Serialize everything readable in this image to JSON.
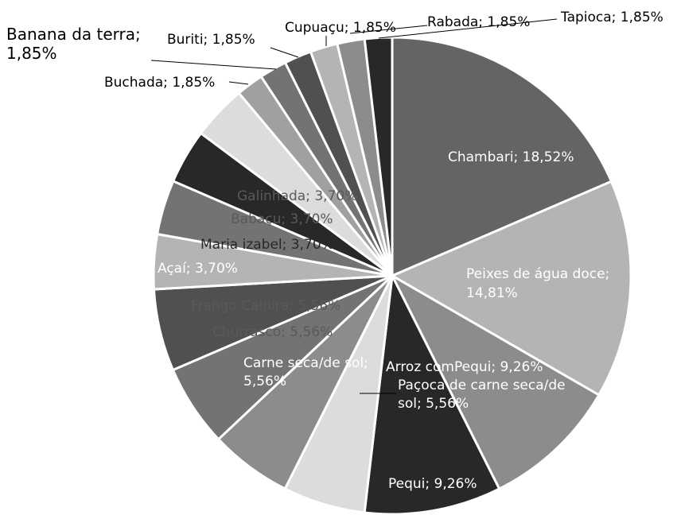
{
  "chart_data": {
    "type": "pie",
    "title": "",
    "slices": [
      {
        "label": "Chambari; 18,52%",
        "value": 18.52,
        "color": "#646464",
        "label_color": "#ffffff"
      },
      {
        "label": "Peixes de água doce; 14,81%",
        "value": 14.81,
        "color": "#b4b4b4",
        "label_color": "#ffffff"
      },
      {
        "label": "Arroz comPequi; 9,26%",
        "value": 9.26,
        "color": "#8c8c8c",
        "label_color": "#ffffff"
      },
      {
        "label": "Pequi; 9,26%",
        "value": 9.26,
        "color": "#282828",
        "label_color": "#ffffff"
      },
      {
        "label": "Paçoca de carne seca/de sol; 5,56%",
        "value": 5.56,
        "color": "#dcdcdc",
        "label_color": "#ffffff"
      },
      {
        "label": "Carne  seca/de sol; 5,56%",
        "value": 5.56,
        "color": "#8c8c8c",
        "label_color": "#ffffff"
      },
      {
        "label": "Churrasco; 5,56%",
        "value": 5.56,
        "color": "#737373",
        "label_color": "#5a5a5a"
      },
      {
        "label": "Frango Caipira; 5,56%",
        "value": 5.56,
        "color": "#505050",
        "label_color": "#5a5a5a"
      },
      {
        "label": "Açaí; 3,70%",
        "value": 3.7,
        "color": "#b4b4b4",
        "label_color": "#ffffff"
      },
      {
        "label": "Maria izabel; 3,70%",
        "value": 3.7,
        "color": "#737373",
        "label_color": "#282828"
      },
      {
        "label": "Babaçu; 3,70%",
        "value": 3.7,
        "color": "#282828",
        "label_color": "#5a5a5a"
      },
      {
        "label": "Galinhada; 3,70%",
        "value": 3.7,
        "color": "#dcdcdc",
        "label_color": "#5a5a5a"
      },
      {
        "label": "Buchada; 1,85%",
        "value": 1.85,
        "color": "#a0a0a0",
        "label_color": "#000000"
      },
      {
        "label": "Banana da terra; 1,85%",
        "value": 1.85,
        "color": "#737373",
        "label_color": "#000000"
      },
      {
        "label": "Buriti; 1,85%",
        "value": 1.85,
        "color": "#505050",
        "label_color": "#000000"
      },
      {
        "label": "Cupuaçu; 1,85%",
        "value": 1.85,
        "color": "#b4b4b4",
        "label_color": "#000000"
      },
      {
        "label": "Rabada; 1,85%",
        "value": 1.85,
        "color": "#8c8c8c",
        "label_color": "#000000"
      },
      {
        "label": "Tapioca; 1,85%",
        "value": 1.85,
        "color": "#282828",
        "label_color": "#000000"
      }
    ]
  }
}
